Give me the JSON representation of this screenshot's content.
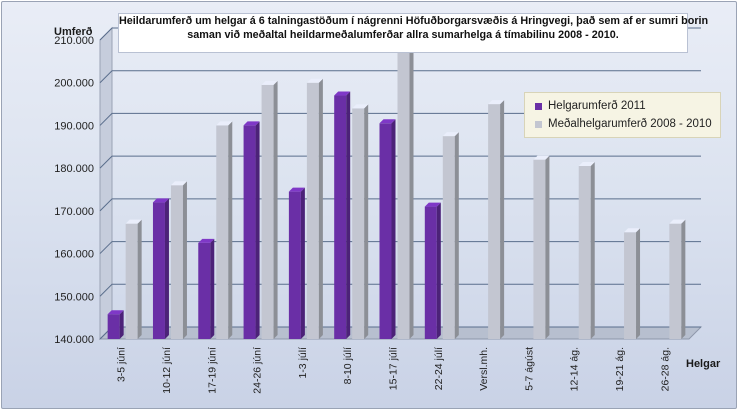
{
  "chart_data": {
    "type": "bar",
    "title_lines": [
      "Heildarumferð um helgar á 6 talningastöðum í nágrenni Höfuðborgarsvæðis á Hringvegi, það sem af er sumri borin",
      "saman við meðaltal heildarmeðalumferðar  allra sumarhelga  á tímabilinu  2008 - 2010."
    ],
    "ylabel": "Umferð",
    "xlabel": "Helgar",
    "ylim": [
      140000,
      210000
    ],
    "ytick_values": [
      140000,
      150000,
      160000,
      170000,
      180000,
      190000,
      200000,
      210000
    ],
    "ytick_labels": [
      "140.000",
      "150.000",
      "160.000",
      "170.000",
      "180.000",
      "190.000",
      "200.000",
      "210.000"
    ],
    "categories": [
      "3-5 júní",
      "10-12 júní",
      "17-19 júní",
      "24-26 júní",
      "1-3 júlí",
      "8-10 júlí",
      "15-17 júlí",
      "22-24 júlí",
      "Versl.mh.",
      "5-7 ágúst",
      "12-14 ág.",
      "19-21 ág.",
      "26-28 ág."
    ],
    "series": [
      {
        "name": "Helgarumferð 2011",
        "color": "#6a2fa6",
        "values": [
          145800,
          172000,
          162500,
          190000,
          174500,
          197000,
          190500,
          171000,
          null,
          null,
          null,
          null,
          null
        ]
      },
      {
        "name": "Meðalhelgarumferð 2008 - 2010",
        "color": "#c3c6d1",
        "values": [
          167000,
          176000,
          190000,
          199500,
          200000,
          194000,
          207000,
          187500,
          195000,
          182000,
          180500,
          165000,
          167000
        ]
      }
    ],
    "grid": true,
    "legend_position": "right"
  }
}
